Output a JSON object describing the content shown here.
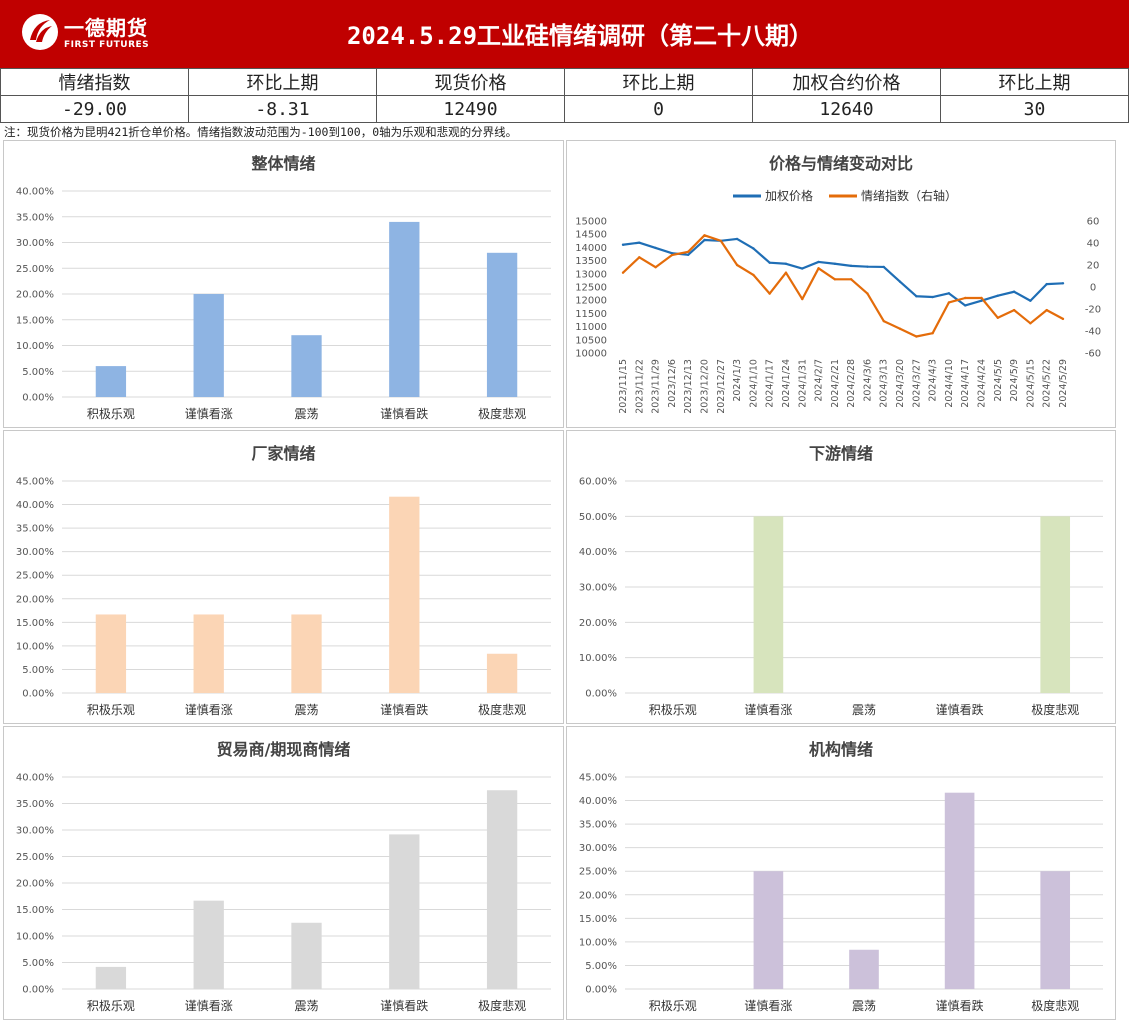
{
  "header": {
    "logo_cn": "一德期货",
    "logo_en": "FIRST FUTURES",
    "title": "2024.5.29工业硅情绪调研（第二十八期）"
  },
  "summary": {
    "headers": [
      "情绪指数",
      "环比上期",
      "现货价格",
      "环比上期",
      "加权合约价格",
      "环比上期"
    ],
    "values": [
      "-29.00",
      "-8.31",
      "12490",
      "0",
      "12640",
      "30"
    ]
  },
  "note": "注：现货价格为昆明421折仓单价格。情绪指数波动范围为-100到100，0轴为乐观和悲观的分界线。",
  "colors": {
    "header_bg": "#c00000",
    "overall": "#8eb4e3",
    "producer": "#fbd5b5",
    "downstream": "#d7e4bd",
    "trader": "#d9d9d9",
    "institution": "#ccc1da",
    "price_line": "#1f6eb5",
    "sentiment_line": "#e46c0a"
  },
  "chart_data": [
    {
      "id": "overall",
      "type": "bar",
      "title": "整体情绪",
      "categories": [
        "积极乐观",
        "谨慎看涨",
        "震荡",
        "谨慎看跌",
        "极度悲观"
      ],
      "values": [
        6.0,
        20.0,
        12.0,
        34.0,
        28.0
      ],
      "ylim": [
        0,
        40
      ],
      "yticks": [
        "0.00%",
        "5.00%",
        "10.00%",
        "15.00%",
        "20.00%",
        "25.00%",
        "30.00%",
        "35.00%",
        "40.00%"
      ],
      "grid": true
    },
    {
      "id": "comparison",
      "type": "line",
      "title": "价格与情绪变动对比",
      "legend_position": "top",
      "x": [
        "2023/11/15",
        "2023/11/22",
        "2023/11/29",
        "2023/12/6",
        "2023/12/13",
        "2023/12/20",
        "2023/12/27",
        "2024/1/3",
        "2024/1/10",
        "2024/1/17",
        "2024/1/24",
        "2024/1/31",
        "2024/2/7",
        "2024/2/21",
        "2024/2/28",
        "2024/3/6",
        "2024/3/13",
        "2024/3/20",
        "2024/3/27",
        "2024/4/3",
        "2024/4/10",
        "2024/4/17",
        "2024/4/24",
        "2024/5/5",
        "2024/5/9",
        "2024/5/15",
        "2024/5/22",
        "2024/5/29"
      ],
      "series": [
        {
          "name": "加权价格",
          "axis": "left",
          "values": [
            14100,
            14180,
            13980,
            13780,
            13720,
            14280,
            14250,
            14320,
            13960,
            13420,
            13380,
            13200,
            13450,
            13380,
            13300,
            13270,
            13260,
            12700,
            12150,
            12120,
            12260,
            11800,
            11980,
            12170,
            12320,
            11980,
            12610,
            12640
          ]
        },
        {
          "name": "情绪指数（右轴）",
          "axis": "right",
          "values": [
            13,
            27,
            18,
            29,
            32,
            47,
            42,
            20,
            11,
            -6,
            13,
            -11,
            17,
            7,
            7,
            -6,
            -31,
            -38,
            -45,
            -42,
            -14,
            -10,
            -10,
            -28,
            -21,
            -33,
            -21,
            -29
          ]
        }
      ],
      "ylim_left": [
        10000,
        15000
      ],
      "yticks_left": [
        "10000",
        "10500",
        "11000",
        "11500",
        "12000",
        "12500",
        "13000",
        "13500",
        "14000",
        "14500",
        "15000"
      ],
      "ylim_right": [
        -60,
        60
      ],
      "yticks_right": [
        "-60",
        "-40",
        "-20",
        "0",
        "20",
        "40",
        "60"
      ],
      "grid": false
    },
    {
      "id": "producer",
      "type": "bar",
      "title": "厂家情绪",
      "categories": [
        "积极乐观",
        "谨慎看涨",
        "震荡",
        "谨慎看跌",
        "极度悲观"
      ],
      "values": [
        16.67,
        16.67,
        16.67,
        41.67,
        8.33
      ],
      "ylim": [
        0,
        45
      ],
      "yticks": [
        "0.00%",
        "5.00%",
        "10.00%",
        "15.00%",
        "20.00%",
        "25.00%",
        "30.00%",
        "35.00%",
        "40.00%",
        "45.00%"
      ],
      "grid": true
    },
    {
      "id": "downstream",
      "type": "bar",
      "title": "下游情绪",
      "categories": [
        "积极乐观",
        "谨慎看涨",
        "震荡",
        "谨慎看跌",
        "极度悲观"
      ],
      "values": [
        0,
        50.0,
        0,
        0,
        50.0
      ],
      "ylim": [
        0,
        60
      ],
      "yticks": [
        "0.00%",
        "10.00%",
        "20.00%",
        "30.00%",
        "40.00%",
        "50.00%",
        "60.00%"
      ],
      "grid": true
    },
    {
      "id": "trader",
      "type": "bar",
      "title": "贸易商/期现商情绪",
      "categories": [
        "积极乐观",
        "谨慎看涨",
        "震荡",
        "谨慎看跌",
        "极度悲观"
      ],
      "values": [
        4.17,
        16.67,
        12.5,
        29.17,
        37.5
      ],
      "ylim": [
        0,
        40
      ],
      "yticks": [
        "0.00%",
        "5.00%",
        "10.00%",
        "15.00%",
        "20.00%",
        "25.00%",
        "30.00%",
        "35.00%",
        "40.00%"
      ],
      "grid": true
    },
    {
      "id": "institution",
      "type": "bar",
      "title": "机构情绪",
      "categories": [
        "积极乐观",
        "谨慎看涨",
        "震荡",
        "谨慎看跌",
        "极度悲观"
      ],
      "values": [
        0,
        25.0,
        8.33,
        41.67,
        25.0
      ],
      "ylim": [
        0,
        45
      ],
      "yticks": [
        "0.00%",
        "5.00%",
        "10.00%",
        "15.00%",
        "20.00%",
        "25.00%",
        "30.00%",
        "35.00%",
        "40.00%",
        "45.00%"
      ],
      "grid": true
    }
  ]
}
